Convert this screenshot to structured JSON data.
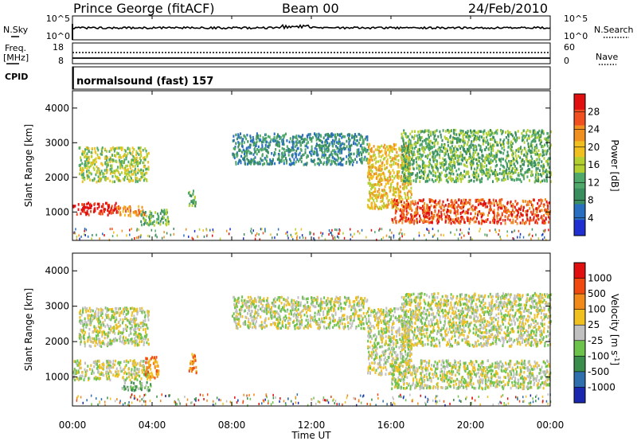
{
  "header": {
    "station": "Prince George (fitACF)",
    "beam": "Beam 00",
    "date": "24/Feb/2010"
  },
  "top_panels": {
    "nsky_label": "N.Sky",
    "nsky_ticks": [
      "10^5",
      "10^0"
    ],
    "nsearch_label": "N.Search",
    "nsearch_ticks": [
      "10^5",
      "10^0"
    ],
    "freq_label": "Freq.",
    "freq_unit": "[MHz]",
    "freq_ticks": [
      "18",
      "8"
    ],
    "nave_label": "Nave",
    "nave_ticks": [
      "60",
      "0"
    ],
    "cpid_label": "CPID",
    "cpid_value": "normalsound (fast) 157"
  },
  "colors": {
    "power": [
      "#2030d0",
      "#2a6fbf",
      "#3a8d5f",
      "#4fa96a",
      "#b4d030",
      "#f0c020",
      "#f09020",
      "#f05020",
      "#e01010"
    ],
    "velocity": [
      "#1a28b0",
      "#2f6fae",
      "#3a8d4a",
      "#6cc24a",
      "#c0c0c0",
      "#f0c020",
      "#f08a1a",
      "#f04a10",
      "#e01010"
    ]
  },
  "chart_data": [
    {
      "type": "heatmap",
      "title": "Power",
      "ylabel": "Slant Range [km]",
      "xlabel": "Time UT",
      "x_ticks": [
        "00:00",
        "04:00",
        "08:00",
        "12:00",
        "16:00",
        "20:00",
        "00:00"
      ],
      "y_ticks": [
        "1000",
        "2000",
        "3000",
        "4000"
      ],
      "xlim": [
        0,
        24
      ],
      "ylim": [
        180,
        4500
      ],
      "colorbar": {
        "label": "Power [dB]",
        "ticks": [
          "28",
          "24",
          "20",
          "16",
          "12",
          "8",
          "4"
        ]
      },
      "bands": [
        {
          "t": [
            0.0,
            2.2
          ],
          "r": [
            950,
            1300
          ],
          "level": 8
        },
        {
          "t": [
            2.2,
            3.6
          ],
          "r": [
            900,
            1200
          ],
          "level": 6
        },
        {
          "t": [
            3.4,
            4.8
          ],
          "r": [
            650,
            1100
          ],
          "level": 3
        },
        {
          "t": [
            0.3,
            3.8
          ],
          "r": [
            1900,
            2900
          ],
          "level": 4
        },
        {
          "t": [
            5.8,
            6.2
          ],
          "r": [
            1150,
            1650
          ],
          "level": 3
        },
        {
          "t": [
            8.0,
            14.8
          ],
          "r": [
            2400,
            3300
          ],
          "level": 2
        },
        {
          "t": [
            14.8,
            17.0
          ],
          "r": [
            1100,
            3000
          ],
          "level": 5
        },
        {
          "t": [
            16.0,
            24.0
          ],
          "r": [
            700,
            1400
          ],
          "level": 7
        },
        {
          "t": [
            16.5,
            24.0
          ],
          "r": [
            1900,
            3400
          ],
          "level": 3
        }
      ]
    },
    {
      "type": "heatmap",
      "title": "Velocity",
      "ylabel": "Slant Range [km]",
      "xlabel": "Time UT",
      "x_ticks": [
        "00:00",
        "04:00",
        "08:00",
        "12:00",
        "16:00",
        "20:00",
        "00:00"
      ],
      "y_ticks": [
        "1000",
        "2000",
        "3000",
        "4000"
      ],
      "xlim": [
        0,
        24
      ],
      "ylim": [
        180,
        4500
      ],
      "colorbar": {
        "label": "Velocity [m s^-1]",
        "ticks": [
          "1000",
          "500",
          "100",
          "25",
          "-25",
          "-100",
          "-500",
          "-1000"
        ]
      },
      "bands": [
        {
          "t": [
            0.0,
            3.8
          ],
          "r": [
            950,
            1500
          ],
          "level": 4
        },
        {
          "t": [
            0.3,
            3.8
          ],
          "r": [
            1900,
            3000
          ],
          "level": 4
        },
        {
          "t": [
            2.4,
            3.9
          ],
          "r": [
            650,
            900
          ],
          "level": 3
        },
        {
          "t": [
            3.6,
            4.3
          ],
          "r": [
            900,
            1600
          ],
          "level": 6
        },
        {
          "t": [
            5.8,
            6.2
          ],
          "r": [
            1150,
            1700
          ],
          "level": 6
        },
        {
          "t": [
            8.0,
            14.8
          ],
          "r": [
            2400,
            3300
          ],
          "level": 4
        },
        {
          "t": [
            14.8,
            17.0
          ],
          "r": [
            1100,
            3000
          ],
          "level": 4
        },
        {
          "t": [
            16.0,
            24.0
          ],
          "r": [
            700,
            1500
          ],
          "level": 4
        },
        {
          "t": [
            16.5,
            24.0
          ],
          "r": [
            1900,
            3400
          ],
          "level": 4
        }
      ]
    }
  ],
  "xaxis_title": "Time UT"
}
